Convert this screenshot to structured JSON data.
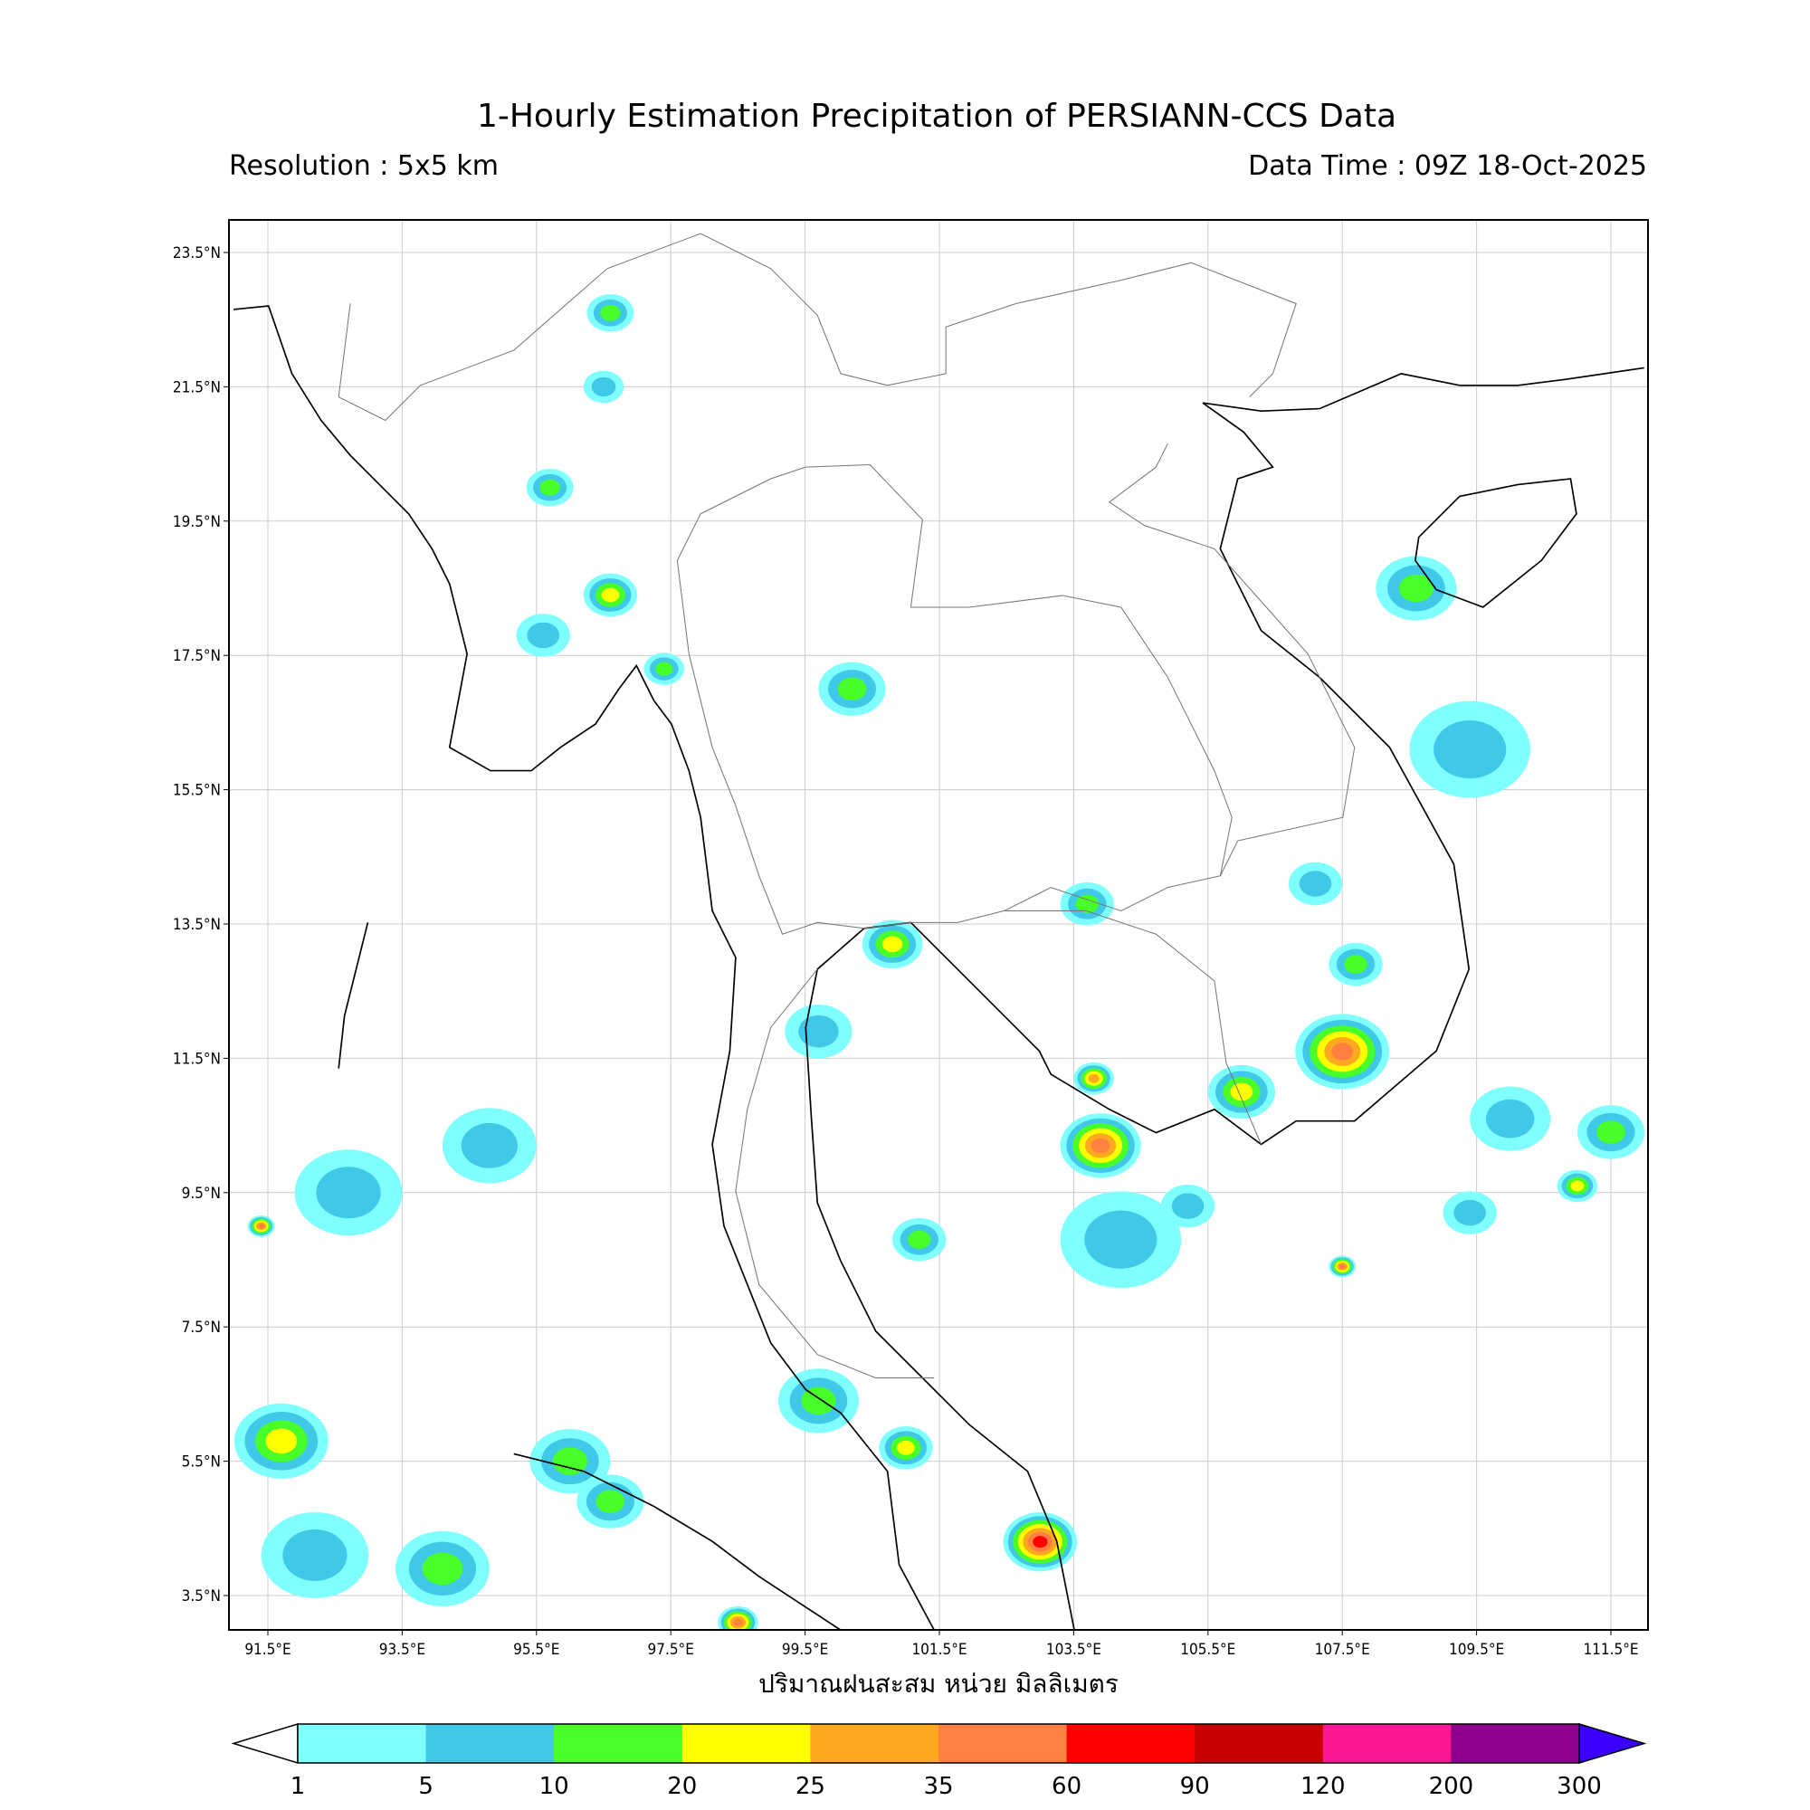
{
  "header": {
    "title": "1-Hourly Estimation Precipitation of PERSIANN-CCS Data",
    "resolution": "Resolution : 5x5 km",
    "data_time": "Data Time : 09Z 18-Oct-2025"
  },
  "map": {
    "extent_lon": [
      90.9,
      112.05
    ],
    "extent_lat": [
      3.0,
      24.0
    ],
    "grid": true,
    "lat_ticks": [
      "23.5°N",
      "21.5°N",
      "19.5°N",
      "17.5°N",
      "15.5°N",
      "13.5°N",
      "11.5°N",
      "9.5°N",
      "7.5°N",
      "5.5°N",
      "3.5°N"
    ],
    "lon_ticks": [
      "91.5°E",
      "93.5°E",
      "95.5°E",
      "97.5°E",
      "99.5°E",
      "101.5°E",
      "103.5°E",
      "105.5°E",
      "107.5°E",
      "109.5°E",
      "111.5°E"
    ],
    "xlabel": "ปริมาณฝนสะสม หน่วย มิลลิเมตร"
  },
  "colorbar": {
    "labels": [
      "1",
      "5",
      "10",
      "20",
      "25",
      "35",
      "60",
      "90",
      "120",
      "200",
      "300"
    ],
    "colors": [
      "#80FFFF",
      "#40C8E8",
      "#48FF28",
      "#FFFF00",
      "#FFA820",
      "#FF8040",
      "#FF0000",
      "#C80000",
      "#FF1896",
      "#8C008C"
    ],
    "under_color": "#FFFFFF",
    "over_color": "#3C00FF"
  }
}
